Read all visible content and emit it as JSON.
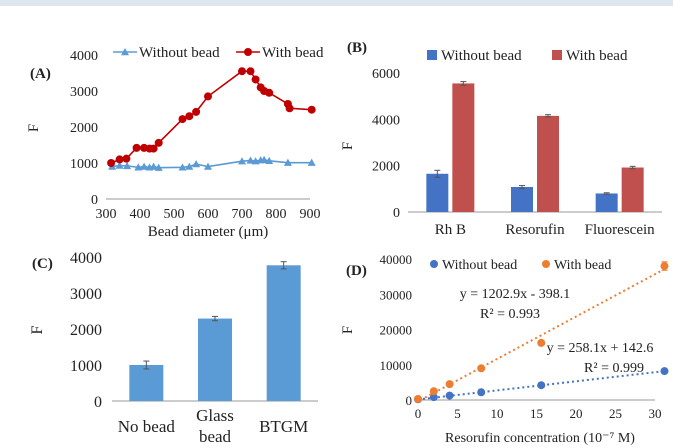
{
  "chart_data": [
    {
      "panel": "(A)",
      "type": "line",
      "xlabel": "Bead diameter (μm)",
      "ylabel": "F",
      "xlim": [
        300,
        900
      ],
      "ylim": [
        0,
        4000
      ],
      "xticks": [
        300,
        400,
        500,
        600,
        700,
        800,
        900
      ],
      "yticks": [
        0,
        1000,
        2000,
        3000,
        4000
      ],
      "grid": false,
      "legend": "top",
      "series": [
        {
          "name": "Without bead",
          "color": "#5b9bd5",
          "marker": "triangle",
          "points": [
            [
              318,
              900
            ],
            [
              340,
              930
            ],
            [
              362,
              920
            ],
            [
              395,
              880
            ],
            [
              412,
              900
            ],
            [
              428,
              880
            ],
            [
              440,
              900
            ],
            [
              455,
              870
            ],
            [
              525,
              880
            ],
            [
              545,
              900
            ],
            [
              565,
              970
            ],
            [
              600,
              900
            ],
            [
              700,
              1050
            ],
            [
              725,
              1070
            ],
            [
              740,
              1050
            ],
            [
              755,
              1080
            ],
            [
              765,
              1090
            ],
            [
              780,
              1060
            ],
            [
              835,
              1010
            ],
            [
              905,
              1010
            ]
          ]
        },
        {
          "name": "With bead",
          "color": "#c00000",
          "marker": "circle",
          "points": [
            [
              315,
              1000
            ],
            [
              340,
              1100
            ],
            [
              360,
              1120
            ],
            [
              390,
              1420
            ],
            [
              412,
              1420
            ],
            [
              428,
              1400
            ],
            [
              440,
              1400
            ],
            [
              455,
              1560
            ],
            [
              525,
              2220
            ],
            [
              545,
              2300
            ],
            [
              565,
              2420
            ],
            [
              600,
              2850
            ],
            [
              700,
              3550
            ],
            [
              725,
              3550
            ],
            [
              740,
              3320
            ],
            [
              755,
              3100
            ],
            [
              765,
              3000
            ],
            [
              780,
              2950
            ],
            [
              835,
              2640
            ],
            [
              840,
              2520
            ],
            [
              905,
              2480
            ]
          ]
        }
      ]
    },
    {
      "panel": "(B)",
      "type": "bar",
      "ylabel": "F",
      "categories": [
        "Rh B",
        "Resorufin",
        "Fluorescein"
      ],
      "ylim": [
        0,
        6000
      ],
      "yticks": [
        0,
        2000,
        4000,
        6000
      ],
      "legend": "top",
      "series": [
        {
          "name": "Without bead",
          "color": "#4472c4",
          "values": [
            1650,
            1080,
            800
          ],
          "errors": [
            150,
            60,
            30
          ]
        },
        {
          "name": "With bead",
          "color": "#c0504d",
          "values": [
            5550,
            4150,
            1920
          ],
          "errors": [
            80,
            50,
            50
          ]
        }
      ]
    },
    {
      "panel": "(C)",
      "type": "bar",
      "ylabel": "F",
      "categories": [
        "No bead",
        "Glass bead",
        "BTGM"
      ],
      "category_lines": [
        [
          "No bead"
        ],
        [
          "Glass",
          "bead"
        ],
        [
          "BTGM"
        ]
      ],
      "ylim": [
        0,
        4000
      ],
      "yticks": [
        0,
        1000,
        2000,
        3000,
        4000
      ],
      "color": "#5b9bd5",
      "values": [
        1000,
        2290,
        3770
      ],
      "errors": [
        110,
        60,
        100
      ]
    },
    {
      "panel": "(D)",
      "type": "scatter",
      "xlabel": "Resorufin concentration (10⁻⁷ M)",
      "ylabel": "F",
      "xlim": [
        0,
        30
      ],
      "ylim": [
        0,
        40000
      ],
      "xticks": [
        0,
        5,
        10,
        15,
        20,
        25,
        30
      ],
      "yticks": [
        0,
        10000,
        20000,
        30000,
        40000
      ],
      "legend": "top",
      "series": [
        {
          "name": "Without bead",
          "color": "#4472c4",
          "points": [
            [
              0,
              200
            ],
            [
              2,
              800
            ],
            [
              4,
              1250
            ],
            [
              8,
              2200
            ],
            [
              15.6,
              4200
            ],
            [
              31.2,
              8200
            ]
          ],
          "equation": "y = 258.1x + 142.6",
          "r2": "R² = 0.999",
          "fit": [
            258.1,
            142.6
          ]
        },
        {
          "name": "With bead",
          "color": "#ed7d31",
          "points": [
            [
              0,
              300
            ],
            [
              2,
              2500
            ],
            [
              4,
              4500
            ],
            [
              8,
              9000
            ],
            [
              15.6,
              16200
            ],
            [
              31.2,
              38000
            ]
          ],
          "errors": [
            0,
            0,
            0,
            0,
            0,
            1200
          ],
          "equation": "y = 1202.9x - 398.1",
          "r2": "R² = 0.993",
          "fit": [
            1202.9,
            -398.1
          ]
        }
      ]
    }
  ]
}
